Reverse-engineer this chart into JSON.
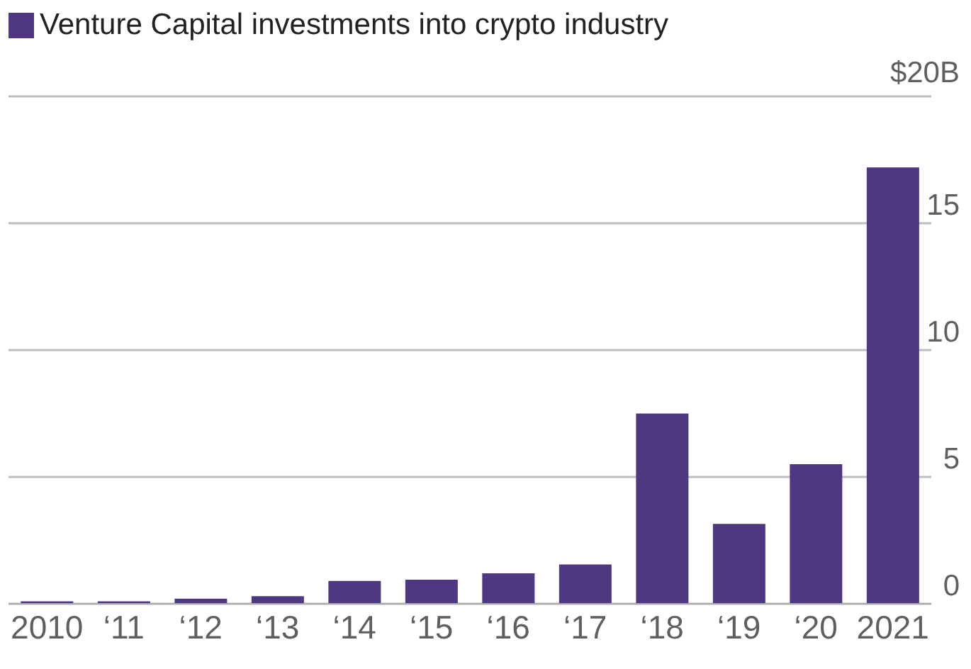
{
  "chart_data": {
    "type": "bar",
    "categories": [
      "2010",
      "‘11",
      "‘12",
      "‘13",
      "‘14",
      "‘15",
      "‘16",
      "‘17",
      "‘18",
      "‘19",
      "‘20",
      "2021"
    ],
    "series": [
      {
        "name": "Venture Capital investments into crypto industry",
        "color": "#4e3882",
        "values": [
          0.1,
          0.1,
          0.2,
          0.3,
          0.9,
          0.95,
          1.2,
          1.55,
          7.5,
          3.15,
          5.5,
          17.2
        ]
      }
    ],
    "ylim": [
      0,
      20
    ],
    "yticks": [
      0,
      5,
      10,
      15,
      {
        "value": 20,
        "label": "$20B"
      }
    ],
    "grid": "y",
    "legend": "top left"
  }
}
